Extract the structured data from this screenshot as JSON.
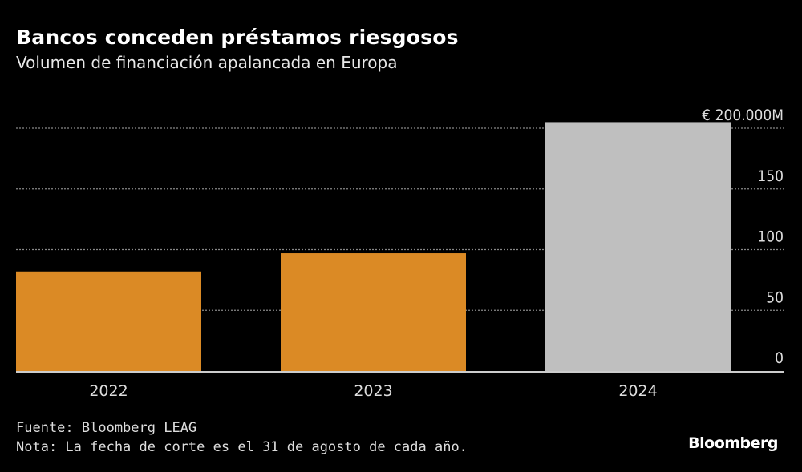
{
  "title": "Bancos conceden préstamos riesgosos",
  "subtitle": "Volumen de financiación apalancada en Europa",
  "chart_data": {
    "type": "bar",
    "categories": [
      "2022",
      "2023",
      "2024"
    ],
    "values": [
      82,
      97,
      205
    ],
    "colors": [
      "#db8a25",
      "#db8a25",
      "#bfbfbf"
    ],
    "ylim": [
      0,
      200
    ],
    "yticks": [
      0,
      50,
      100,
      150,
      200
    ],
    "ytick_labels": [
      "0",
      "50",
      "100",
      "150",
      "€ 200.000M"
    ],
    "grid": true,
    "y_axis_side": "right"
  },
  "footer": {
    "source": "Fuente: Bloomberg LEAG",
    "note": "Nota: La fecha de corte es el 31 de agosto de cada año.",
    "logo": "Bloomberg"
  }
}
